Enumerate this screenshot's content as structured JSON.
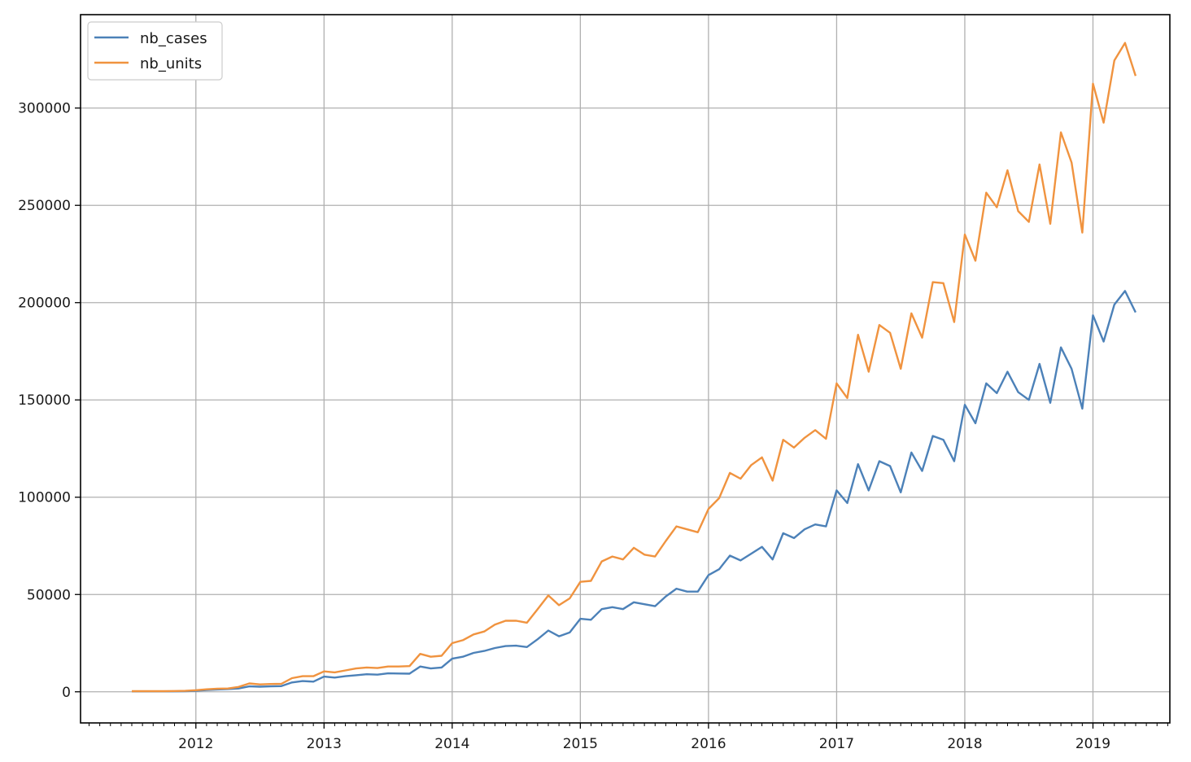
{
  "chart_data": {
    "type": "line",
    "title": "",
    "xlabel": "",
    "ylabel": "",
    "grid": true,
    "legend_placement": "top-left",
    "xlim": [
      2011.1,
      2019.6
    ],
    "ylim": [
      -16000,
      348000
    ],
    "x_ticks": [
      2012,
      2013,
      2014,
      2015,
      2016,
      2017,
      2018,
      2019
    ],
    "x_tick_labels": [
      "2012",
      "2013",
      "2014",
      "2015",
      "2016",
      "2017",
      "2018",
      "2019"
    ],
    "y_ticks": [
      0,
      50000,
      100000,
      150000,
      200000,
      250000,
      300000
    ],
    "y_tick_labels": [
      "0",
      "50000",
      "100000",
      "150000",
      "200000",
      "250000",
      "300000"
    ],
    "x": [
      2011.5,
      2011.583,
      2011.667,
      2011.75,
      2011.833,
      2011.917,
      2012.0,
      2012.083,
      2012.167,
      2012.25,
      2012.333,
      2012.417,
      2012.5,
      2012.583,
      2012.667,
      2012.75,
      2012.833,
      2012.917,
      2013.0,
      2013.083,
      2013.167,
      2013.25,
      2013.333,
      2013.417,
      2013.5,
      2013.583,
      2013.667,
      2013.75,
      2013.833,
      2013.917,
      2014.0,
      2014.083,
      2014.167,
      2014.25,
      2014.333,
      2014.417,
      2014.5,
      2014.583,
      2014.667,
      2014.75,
      2014.833,
      2014.917,
      2015.0,
      2015.083,
      2015.167,
      2015.25,
      2015.333,
      2015.417,
      2015.5,
      2015.583,
      2015.667,
      2015.75,
      2015.833,
      2015.917,
      2016.0,
      2016.083,
      2016.167,
      2016.25,
      2016.333,
      2016.417,
      2016.5,
      2016.583,
      2016.667,
      2016.75,
      2016.833,
      2016.917,
      2017.0,
      2017.083,
      2017.167,
      2017.25,
      2017.333,
      2017.417,
      2017.5,
      2017.583,
      2017.667,
      2017.75,
      2017.833,
      2017.917,
      2018.0,
      2018.083,
      2018.167,
      2018.25,
      2018.333,
      2018.417,
      2018.5,
      2018.583,
      2018.667,
      2018.75,
      2018.833,
      2018.917,
      2019.0,
      2019.083,
      2019.167,
      2019.25,
      2019.333
    ],
    "series": [
      {
        "name": "nb_cases",
        "color": "#4c81b8",
        "values": [
          200,
          200,
          200,
          200,
          250,
          300,
          500,
          900,
          1200,
          1400,
          1700,
          2800,
          2600,
          2800,
          2900,
          4800,
          5500,
          5200,
          7800,
          7300,
          8000,
          8500,
          9000,
          8800,
          9500,
          9400,
          9300,
          13000,
          12000,
          12500,
          17000,
          18000,
          20000,
          21000,
          22500,
          23500,
          23700,
          23000,
          27000,
          31500,
          28500,
          30500,
          37500,
          37000,
          42500,
          43500,
          42500,
          46000,
          45000,
          44000,
          49000,
          53000,
          51500,
          51500,
          60000,
          63000,
          70000,
          67500,
          71000,
          74500,
          68000,
          81500,
          79000,
          83500,
          86000,
          85000,
          103500,
          97000,
          117000,
          103500,
          118500,
          116000,
          102500,
          123000,
          113500,
          131500,
          129500,
          118500,
          147500,
          138000,
          158500,
          153500,
          164500,
          154000,
          150000,
          168500,
          148500,
          177000,
          166000,
          145500,
          193500,
          180000,
          199000,
          206000,
          195000
        ]
      },
      {
        "name": "nb_units",
        "color": "#f0933f",
        "values": [
          300,
          300,
          300,
          300,
          400,
          500,
          800,
          1300,
          1600,
          1700,
          2500,
          4300,
          3800,
          4000,
          4100,
          7000,
          8000,
          8000,
          10500,
          10000,
          11000,
          12000,
          12500,
          12200,
          13000,
          13000,
          13200,
          19500,
          18000,
          18500,
          25000,
          26500,
          29500,
          31000,
          34500,
          36500,
          36500,
          35500,
          42500,
          49500,
          44500,
          48000,
          56500,
          57000,
          67000,
          69500,
          68000,
          74000,
          70500,
          69500,
          77500,
          85000,
          83500,
          82000,
          94000,
          99500,
          112500,
          109500,
          116500,
          120500,
          108500,
          129500,
          125500,
          130500,
          134500,
          130000,
          158500,
          151000,
          183500,
          164500,
          188500,
          184500,
          166000,
          194500,
          182000,
          210500,
          210000,
          190000,
          235000,
          221500,
          256500,
          249000,
          268000,
          247000,
          241500,
          271000,
          240500,
          287500,
          272000,
          236000,
          312500,
          292500,
          324500,
          333500,
          316500
        ]
      }
    ]
  }
}
